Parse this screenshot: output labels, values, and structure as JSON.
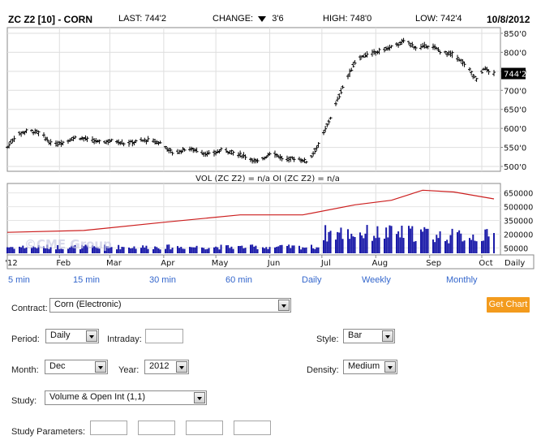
{
  "header": {
    "symbol": "ZC Z2 [10] - CORN",
    "last_label": "LAST: 744'2",
    "change_label": "CHANGE:",
    "change_value": "3'6",
    "high_label": "HIGH: 748'0",
    "low_label": "LOW: 742'4",
    "date": "10/8/2012"
  },
  "chart_data": [
    {
      "type": "ohlc",
      "price_axis_ticks": [
        "850'0",
        "800'0",
        "750'0",
        "700'0",
        "650'0",
        "600'0",
        "550'0",
        "500'0"
      ],
      "last_price_tag": "744'2",
      "ylim": [
        500,
        850
      ],
      "close_series": [
        {
          "date": "2012-01-02",
          "close": 550
        },
        {
          "date": "2012-01-07",
          "close": 582
        },
        {
          "date": "2012-01-14",
          "close": 595
        },
        {
          "date": "2012-01-21",
          "close": 588
        },
        {
          "date": "2012-01-28",
          "close": 556
        },
        {
          "date": "2012-02-04",
          "close": 565
        },
        {
          "date": "2012-02-11",
          "close": 578
        },
        {
          "date": "2012-02-18",
          "close": 570
        },
        {
          "date": "2012-02-25",
          "close": 563
        },
        {
          "date": "2012-03-03",
          "close": 568
        },
        {
          "date": "2012-03-10",
          "close": 560
        },
        {
          "date": "2012-03-17",
          "close": 566
        },
        {
          "date": "2012-03-24",
          "close": 570
        },
        {
          "date": "2012-03-31",
          "close": 560
        },
        {
          "date": "2012-04-07",
          "close": 532
        },
        {
          "date": "2012-04-14",
          "close": 548
        },
        {
          "date": "2012-04-21",
          "close": 540
        },
        {
          "date": "2012-04-28",
          "close": 530
        },
        {
          "date": "2012-05-05",
          "close": 545
        },
        {
          "date": "2012-05-12",
          "close": 535
        },
        {
          "date": "2012-05-19",
          "close": 525
        },
        {
          "date": "2012-05-26",
          "close": 510
        },
        {
          "date": "2012-06-02",
          "close": 540
        },
        {
          "date": "2012-06-09",
          "close": 518
        },
        {
          "date": "2012-06-16",
          "close": 522
        },
        {
          "date": "2012-06-23",
          "close": 512
        },
        {
          "date": "2012-06-30",
          "close": 565
        },
        {
          "date": "2012-07-07",
          "close": 640
        },
        {
          "date": "2012-07-14",
          "close": 720
        },
        {
          "date": "2012-07-21",
          "close": 782
        },
        {
          "date": "2012-07-28",
          "close": 795
        },
        {
          "date": "2012-08-04",
          "close": 805
        },
        {
          "date": "2012-08-11",
          "close": 815
        },
        {
          "date": "2012-08-18",
          "close": 830
        },
        {
          "date": "2012-08-25",
          "close": 810
        },
        {
          "date": "2012-09-01",
          "close": 820
        },
        {
          "date": "2012-09-08",
          "close": 800
        },
        {
          "date": "2012-09-15",
          "close": 795
        },
        {
          "date": "2012-09-22",
          "close": 765
        },
        {
          "date": "2012-09-29",
          "close": 722
        },
        {
          "date": "2012-10-02",
          "close": 758
        },
        {
          "date": "2012-10-08",
          "close": 744
        }
      ]
    },
    {
      "type": "bar+line",
      "title": "VOL (ZC Z2) = n/a OI (ZC Z2) = n/a",
      "axis_ticks": [
        "650000",
        "500000",
        "350000",
        "200000",
        "50000"
      ],
      "ylim": [
        0,
        700000
      ],
      "watermark": "©CME Group",
      "open_interest": [
        {
          "date": "2012-01-02",
          "oi": 220000
        },
        {
          "date": "2012-02-15",
          "oi": 240000
        },
        {
          "date": "2012-04-01",
          "oi": 330000
        },
        {
          "date": "2012-05-15",
          "oi": 410000
        },
        {
          "date": "2012-06-20",
          "oi": 410000
        },
        {
          "date": "2012-07-20",
          "oi": 520000
        },
        {
          "date": "2012-08-10",
          "oi": 570000
        },
        {
          "date": "2012-08-28",
          "oi": 680000
        },
        {
          "date": "2012-09-15",
          "oi": 660000
        },
        {
          "date": "2012-10-08",
          "oi": 585000
        }
      ],
      "volume_levels": {
        "Jan-Jun": 60000,
        "Jul-Aug": 210000,
        "Sep-Oct": 180000
      }
    }
  ],
  "time_axis": {
    "labels": [
      "'12",
      "Feb",
      "Mar",
      "Apr",
      "May",
      "Jun",
      "Jul",
      "Aug",
      "Sep",
      "Oct"
    ],
    "period": "Daily"
  },
  "intervals": [
    "5 min",
    "15 min",
    "30 min",
    "60 min",
    "Daily",
    "Weekly",
    "Monthly"
  ],
  "form": {
    "contract_label": "Contract:",
    "contract_value": "Corn (Electronic)",
    "get_chart": "Get Chart",
    "period_label": "Period:",
    "period_value": "Daily",
    "intraday_label": "Intraday:",
    "style_label": "Style:",
    "style_value": "Bar",
    "month_label": "Month:",
    "month_value": "Dec",
    "year_label": "Year:",
    "year_value": "2012",
    "density_label": "Density:",
    "density_value": "Medium",
    "study_label": "Study:",
    "study_value": "Volume & Open Int (1,1)",
    "study_params_label": "Study Parameters:"
  },
  "colors": {
    "price_bars": "#000000",
    "volume_bars": "#1a1aa8",
    "open_interest_line": "#cc1f1f",
    "link": "#3366cc",
    "button": "#f39b1d"
  }
}
